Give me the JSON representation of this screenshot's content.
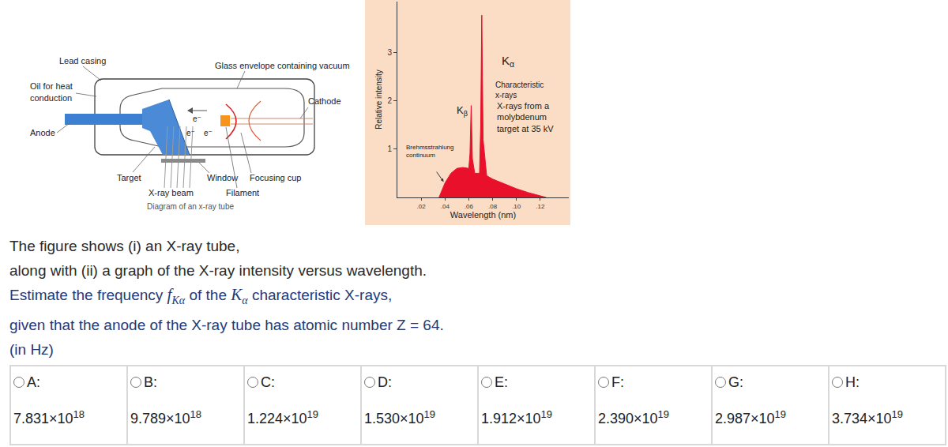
{
  "diagram": {
    "labels": {
      "lead_casing": "Lead casing",
      "glass_envelope": "Glass envelope containing vacuum",
      "oil": [
        "Oil for heat",
        "conduction"
      ],
      "cathode": "Cathode",
      "anode": "Anode",
      "target": "Target",
      "window": "Window",
      "focusing_cup": "Focusing cup",
      "xray_beam": "X-ray beam",
      "filament": "Filament",
      "electron": "e⁻",
      "caption": "Diagram of an x-ray tube"
    }
  },
  "chart_data": {
    "type": "area",
    "x_label": "Wavelength (nm)",
    "y_label": "Relative intensity",
    "x": [
      0.035,
      0.04,
      0.045,
      0.05,
      0.055,
      0.06,
      0.061,
      0.062,
      0.063,
      0.065,
      0.069,
      0.07,
      0.0709,
      0.072,
      0.075,
      0.08,
      0.09,
      0.1,
      0.11,
      0.12,
      0.125
    ],
    "values": [
      0,
      0.3,
      0.5,
      0.6,
      0.62,
      0.6,
      0.9,
      1.9,
      0.8,
      0.5,
      0.5,
      1.5,
      3.77,
      1.2,
      0.45,
      0.38,
      0.28,
      0.18,
      0.1,
      0.03,
      0
    ],
    "color": "#e8102a",
    "xlim": [
      0,
      0.144
    ],
    "ylim": [
      0,
      4.05
    ],
    "xticks": [
      {
        "value": 0.02,
        "label": ".02"
      },
      {
        "value": 0.04,
        "label": ".04"
      },
      {
        "value": 0.06,
        "label": ".06"
      },
      {
        "value": 0.08,
        "label": ".08"
      },
      {
        "value": 0.1,
        "label": ".10"
      },
      {
        "value": 0.12,
        "label": ".12"
      }
    ],
    "yticks": [
      1,
      2,
      3
    ],
    "grid": false,
    "annotations": {
      "k_alpha": {
        "text": "K",
        "sub": "α"
      },
      "characteristic": [
        "Characteristic",
        "x-rays"
      ],
      "k_beta": {
        "text": "K",
        "sub": "β"
      },
      "note": [
        "X-rays from a",
        "molybdenum",
        "target at 35 kV"
      ],
      "continuum": [
        "Brehmsstrahlung",
        "continuum"
      ]
    }
  },
  "question": {
    "lines": [
      [
        {
          "text": "The figure shows (i) an X-ray tube,"
        }
      ],
      [
        {
          "text": "along with (ii) a graph of the X-ray intensity versus wavelength."
        }
      ],
      [
        {
          "text": "Estimate the frequency "
        },
        {
          "math": "f",
          "sub": "Kα"
        },
        {
          "text": " of the "
        },
        {
          "math": "K",
          "sub": "α"
        },
        {
          "text": " characteristic X-rays,"
        }
      ],
      [
        {
          "text": "given that the anode of the X-ray tube has atomic number Z = 64."
        }
      ],
      [
        {
          "text": "(in Hz)"
        }
      ]
    ]
  },
  "options": [
    {
      "letter": "A:",
      "mantissa": "7.831×10",
      "exponent": "18"
    },
    {
      "letter": "B:",
      "mantissa": "9.789×10",
      "exponent": "18"
    },
    {
      "letter": "C:",
      "mantissa": "1.224×10",
      "exponent": "19"
    },
    {
      "letter": "D:",
      "mantissa": "1.530×10",
      "exponent": "19"
    },
    {
      "letter": "E:",
      "mantissa": "1.912×10",
      "exponent": "19"
    },
    {
      "letter": "F:",
      "mantissa": "2.390×10",
      "exponent": "19"
    },
    {
      "letter": "G:",
      "mantissa": "2.987×10",
      "exponent": "19"
    },
    {
      "letter": "H:",
      "mantissa": "3.734×10",
      "exponent": "19"
    }
  ]
}
